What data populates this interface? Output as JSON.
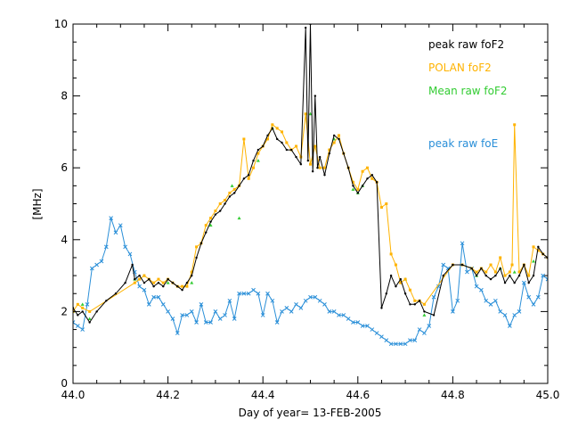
{
  "chart_data": {
    "type": "line",
    "xlabel": "Day of year= 13-FEB-2005",
    "ylabel": "[MHz]",
    "xlim": [
      44.0,
      45.0
    ],
    "ylim": [
      0,
      10
    ],
    "x_ticks": [
      "44.0",
      "44.2",
      "44.4",
      "44.6",
      "44.8",
      "45.0"
    ],
    "y_ticks": [
      "0",
      "2",
      "4",
      "6",
      "8",
      "10"
    ],
    "legend_position": "top-right",
    "series": [
      {
        "name": "peak raw foF2",
        "color": "#000000",
        "x": [
          44.0,
          44.01,
          44.02,
          44.035,
          44.05,
          44.07,
          44.09,
          44.11,
          44.125,
          44.13,
          44.14,
          44.15,
          44.16,
          44.17,
          44.18,
          44.19,
          44.2,
          44.21,
          44.22,
          44.23,
          44.24,
          44.25,
          44.26,
          44.27,
          44.28,
          44.29,
          44.3,
          44.31,
          44.32,
          44.33,
          44.34,
          44.35,
          44.36,
          44.37,
          44.38,
          44.39,
          44.4,
          44.41,
          44.42,
          44.43,
          44.44,
          44.45,
          44.46,
          44.47,
          44.48,
          44.49,
          44.495,
          44.5,
          44.505,
          44.51,
          44.515,
          44.52,
          44.53,
          44.54,
          44.55,
          44.56,
          44.57,
          44.58,
          44.59,
          44.6,
          44.61,
          44.62,
          44.63,
          44.64,
          44.65,
          44.66,
          44.67,
          44.68,
          44.69,
          44.7,
          44.71,
          44.72,
          44.73,
          44.74,
          44.76,
          44.78,
          44.8,
          44.82,
          44.84,
          44.85,
          44.86,
          44.87,
          44.88,
          44.89,
          44.9,
          44.91,
          44.92,
          44.93,
          44.94,
          44.95,
          44.96,
          44.97,
          44.98,
          44.99,
          45.0
        ],
        "values": [
          2.1,
          1.9,
          2.0,
          1.7,
          2.0,
          2.3,
          2.5,
          2.8,
          3.3,
          2.9,
          3.0,
          2.8,
          2.9,
          2.7,
          2.8,
          2.7,
          2.9,
          2.8,
          2.7,
          2.6,
          2.8,
          3.0,
          3.5,
          3.9,
          4.2,
          4.5,
          4.7,
          4.8,
          5.0,
          5.2,
          5.3,
          5.5,
          5.7,
          5.8,
          6.2,
          6.5,
          6.6,
          6.9,
          7.1,
          6.8,
          6.7,
          6.5,
          6.5,
          6.3,
          6.1,
          9.9,
          6.2,
          10.0,
          5.9,
          8.0,
          6.0,
          6.3,
          5.8,
          6.4,
          6.9,
          6.8,
          6.4,
          6.0,
          5.5,
          5.3,
          5.5,
          5.7,
          5.8,
          5.6,
          2.1,
          2.5,
          3.0,
          2.7,
          2.9,
          2.5,
          2.2,
          2.2,
          2.3,
          2.0,
          1.9,
          3.0,
          3.3,
          3.3,
          3.2,
          3.0,
          3.2,
          3.0,
          2.9,
          3.0,
          3.2,
          2.8,
          3.0,
          2.8,
          3.0,
          3.3,
          2.8,
          3.0,
          3.8,
          3.6,
          3.5
        ]
      },
      {
        "name": "POLAN foF2",
        "color": "#ffb300",
        "x": [
          44.0,
          44.01,
          44.02,
          44.035,
          44.13,
          44.14,
          44.15,
          44.16,
          44.17,
          44.18,
          44.19,
          44.2,
          44.21,
          44.22,
          44.23,
          44.24,
          44.25,
          44.26,
          44.27,
          44.28,
          44.29,
          44.3,
          44.31,
          44.32,
          44.33,
          44.34,
          44.35,
          44.36,
          44.37,
          44.38,
          44.39,
          44.4,
          44.41,
          44.42,
          44.43,
          44.44,
          44.45,
          44.46,
          44.47,
          44.48,
          44.49,
          44.5,
          44.51,
          44.52,
          44.53,
          44.54,
          44.55,
          44.56,
          44.57,
          44.58,
          44.59,
          44.6,
          44.61,
          44.62,
          44.63,
          44.64,
          44.65,
          44.66,
          44.67,
          44.68,
          44.69,
          44.7,
          44.71,
          44.72,
          44.73,
          44.74,
          44.8,
          44.82,
          44.84,
          44.85,
          44.86,
          44.87,
          44.88,
          44.89,
          44.9,
          44.91,
          44.92,
          44.925,
          44.93,
          44.94,
          44.95,
          44.96,
          44.97,
          44.98,
          44.99,
          45.0
        ],
        "values": [
          2.0,
          2.2,
          2.1,
          2.0,
          2.8,
          2.9,
          3.0,
          2.9,
          2.8,
          2.9,
          2.8,
          2.9,
          2.8,
          2.7,
          2.7,
          2.7,
          3.1,
          3.8,
          3.9,
          4.4,
          4.6,
          4.8,
          5.0,
          5.1,
          5.3,
          5.4,
          5.5,
          6.8,
          5.7,
          6.0,
          6.4,
          6.6,
          6.8,
          7.2,
          7.1,
          7.0,
          6.7,
          6.5,
          6.6,
          6.3,
          7.5,
          6.1,
          6.6,
          6.0,
          6.0,
          6.5,
          6.7,
          6.9,
          6.4,
          6.0,
          5.6,
          5.4,
          5.9,
          6.0,
          5.7,
          5.6,
          4.9,
          5.0,
          3.6,
          3.3,
          2.8,
          2.9,
          2.6,
          2.3,
          2.3,
          2.2,
          3.3,
          3.3,
          3.2,
          3.1,
          3.2,
          3.1,
          3.3,
          3.1,
          3.5,
          3.0,
          3.1,
          3.3,
          7.2,
          3.1,
          3.3,
          3.0,
          3.8,
          3.7,
          3.6,
          3.5
        ]
      },
      {
        "name": "Mean raw foF2",
        "color": "#33cc33",
        "markers_only": true,
        "x": [
          44.0,
          44.02,
          44.035,
          44.13,
          44.15,
          44.2,
          44.25,
          44.29,
          44.335,
          44.35,
          44.39,
          44.42,
          44.5,
          44.55,
          44.59,
          44.6,
          44.61,
          44.7,
          44.74,
          44.85,
          44.9,
          44.93,
          44.97
        ],
        "values": [
          2.0,
          2.2,
          1.8,
          2.9,
          3.0,
          2.8,
          2.8,
          4.4,
          5.5,
          4.6,
          6.2,
          7.1,
          7.5,
          6.8,
          5.4,
          5.3,
          5.5,
          2.9,
          1.9,
          3.0,
          3.2,
          3.1,
          3.4
        ]
      },
      {
        "name": "peak raw foE",
        "color": "#2a8fd8",
        "x": [
          44.0,
          44.01,
          44.02,
          44.03,
          44.04,
          44.05,
          44.06,
          44.07,
          44.08,
          44.09,
          44.1,
          44.11,
          44.12,
          44.13,
          44.14,
          44.15,
          44.16,
          44.17,
          44.18,
          44.19,
          44.2,
          44.21,
          44.22,
          44.23,
          44.24,
          44.25,
          44.26,
          44.27,
          44.28,
          44.29,
          44.3,
          44.31,
          44.32,
          44.33,
          44.34,
          44.35,
          44.36,
          44.37,
          44.38,
          44.39,
          44.4,
          44.41,
          44.42,
          44.43,
          44.44,
          44.45,
          44.46,
          44.47,
          44.48,
          44.49,
          44.5,
          44.51,
          44.52,
          44.53,
          44.54,
          44.55,
          44.56,
          44.57,
          44.58,
          44.59,
          44.6,
          44.61,
          44.62,
          44.63,
          44.64,
          44.65,
          44.66,
          44.67,
          44.68,
          44.69,
          44.7,
          44.71,
          44.72,
          44.73,
          44.74,
          44.75,
          44.76,
          44.77,
          44.78,
          44.79,
          44.8,
          44.81,
          44.82,
          44.83,
          44.84,
          44.85,
          44.86,
          44.87,
          44.88,
          44.89,
          44.9,
          44.91,
          44.92,
          44.93,
          44.94,
          44.95,
          44.96,
          44.97,
          44.98,
          44.99,
          45.0
        ],
        "values": [
          1.7,
          1.6,
          1.5,
          2.2,
          3.2,
          3.3,
          3.4,
          3.8,
          4.6,
          4.2,
          4.4,
          3.8,
          3.6,
          3.1,
          2.7,
          2.6,
          2.2,
          2.4,
          2.4,
          2.2,
          2.0,
          1.8,
          1.4,
          1.9,
          1.9,
          2.0,
          1.7,
          2.2,
          1.7,
          1.7,
          2.0,
          1.8,
          1.9,
          2.3,
          1.8,
          2.5,
          2.5,
          2.5,
          2.6,
          2.5,
          1.9,
          2.5,
          2.3,
          1.7,
          2.0,
          2.1,
          2.0,
          2.2,
          2.1,
          2.3,
          2.4,
          2.4,
          2.3,
          2.2,
          2.0,
          2.0,
          1.9,
          1.9,
          1.8,
          1.7,
          1.7,
          1.6,
          1.6,
          1.5,
          1.4,
          1.3,
          1.2,
          1.1,
          1.1,
          1.1,
          1.1,
          1.2,
          1.2,
          1.5,
          1.4,
          1.6,
          2.4,
          2.7,
          3.3,
          3.2,
          2.0,
          2.3,
          3.9,
          3.1,
          3.2,
          2.7,
          2.6,
          2.3,
          2.2,
          2.3,
          2.0,
          1.9,
          1.6,
          1.9,
          2.0,
          2.8,
          2.4,
          2.2,
          2.4,
          3.0,
          2.9
        ]
      }
    ]
  }
}
